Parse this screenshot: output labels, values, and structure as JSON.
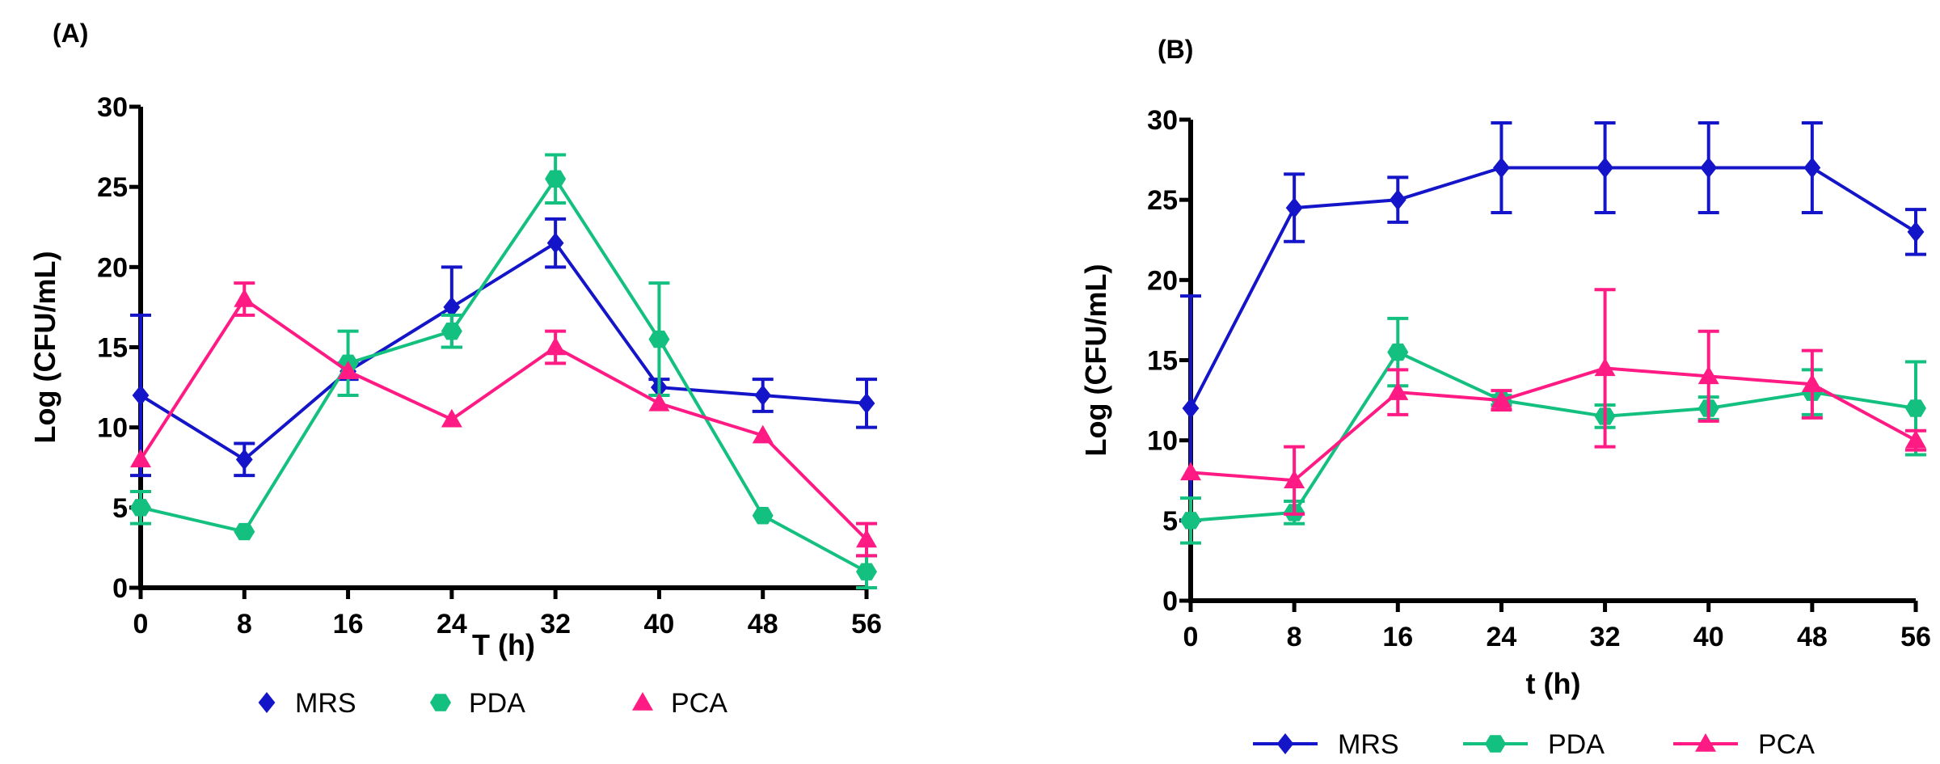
{
  "chart_data": [
    {
      "type": "line",
      "panel_label": "(A)",
      "xlabel": "T (h)",
      "ylabel": "Log (CFU/mL)",
      "x": [
        0,
        8,
        16,
        24,
        32,
        40,
        48,
        56
      ],
      "xticks": [
        "0",
        "8",
        "16",
        "24",
        "32",
        "40",
        "48",
        "56"
      ],
      "yticks": [
        "0",
        "5",
        "10",
        "15",
        "20",
        "25",
        "30"
      ],
      "ylim": [
        0,
        30
      ],
      "legend_style": "markers",
      "series": [
        {
          "name": "MRS",
          "marker": "diamond",
          "color": "#1414c8",
          "values": [
            12,
            8,
            13.5,
            17.5,
            21.5,
            12.5,
            12,
            11.5
          ],
          "errors": [
            5,
            1,
            0.5,
            2.5,
            1.5,
            0.5,
            1,
            1.5
          ]
        },
        {
          "name": "PDA",
          "marker": "hexagon",
          "color": "#14c080",
          "values": [
            5,
            3.5,
            14,
            16,
            25.5,
            15.5,
            4.5,
            1
          ],
          "errors": [
            1,
            0,
            2,
            1,
            1.5,
            3.5,
            0,
            1
          ]
        },
        {
          "name": "PCA",
          "marker": "triangle",
          "color": "#ff1a84",
          "values": [
            8,
            18,
            13.5,
            10.5,
            15,
            11.5,
            9.5,
            3
          ],
          "errors": [
            0,
            1,
            0,
            0,
            1,
            0,
            0,
            1
          ]
        }
      ]
    },
    {
      "type": "line",
      "panel_label": "(B)",
      "xlabel": "t (h)",
      "ylabel": "Log (CFU/mL)",
      "x": [
        0,
        8,
        16,
        24,
        32,
        40,
        48,
        56
      ],
      "xticks": [
        "0",
        "8",
        "16",
        "24",
        "32",
        "40",
        "48",
        "56"
      ],
      "yticks": [
        "0",
        "5",
        "10",
        "15",
        "20",
        "25",
        "30"
      ],
      "ylim": [
        0,
        30
      ],
      "legend_style": "lines",
      "series": [
        {
          "name": "MRS",
          "marker": "diamond",
          "color": "#1414c8",
          "values": [
            12,
            24.5,
            25,
            27,
            27,
            27,
            27,
            23
          ],
          "errors": [
            7,
            2.1,
            1.4,
            2.8,
            2.8,
            2.8,
            2.8,
            1.4
          ]
        },
        {
          "name": "PDA",
          "marker": "hexagon",
          "color": "#14c080",
          "values": [
            5,
            5.5,
            15.5,
            12.5,
            11.5,
            12,
            13,
            12
          ],
          "errors": [
            1.4,
            0.7,
            2.1,
            0.3,
            0.7,
            0.7,
            1.4,
            2.9
          ]
        },
        {
          "name": "PCA",
          "marker": "triangle",
          "color": "#ff1a84",
          "values": [
            8,
            7.5,
            13,
            12.5,
            14.5,
            14,
            13.5,
            10
          ],
          "errors": [
            0,
            2.1,
            1.4,
            0.6,
            4.9,
            2.8,
            2.1,
            0.6
          ]
        }
      ]
    }
  ]
}
